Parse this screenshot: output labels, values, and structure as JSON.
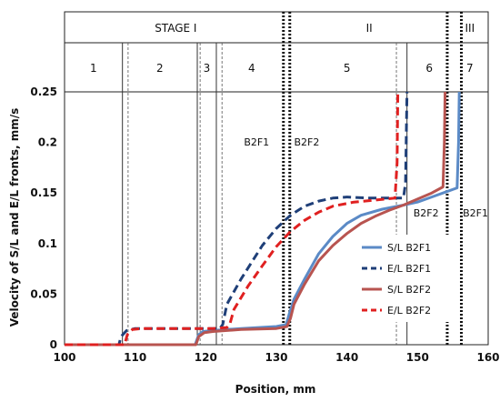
{
  "chart_data": {
    "type": "line",
    "xlabel": "Position, mm",
    "ylabel": "Velocity of S/L and E/L fronts, mm/s",
    "xlim": [
      100,
      160
    ],
    "ylim": [
      0,
      0.25
    ],
    "xticks": [
      "100",
      "110",
      "120",
      "130",
      "140",
      "150",
      "160"
    ],
    "yticks": [
      "0",
      "0.05",
      "0.1",
      "0.15",
      "0.2",
      "0.25"
    ],
    "stages": [
      {
        "label": "STAGE I",
        "x_from": 100,
        "x_to": 131.5
      },
      {
        "label": "II",
        "x_from": 131.5,
        "x_to": 154.8
      },
      {
        "label": "III",
        "x_from": 154.8,
        "x_to": 160
      }
    ],
    "zones": [
      {
        "label": "1",
        "x_from": 100,
        "x_to": 108.2
      },
      {
        "label": "2",
        "x_from": 108.2,
        "x_to": 118.8
      },
      {
        "label": "3",
        "x_from": 118.8,
        "x_to": 121.5
      },
      {
        "label": "4",
        "x_from": 121.5,
        "x_to": 131.5
      },
      {
        "label": "5",
        "x_from": 131.5,
        "x_to": 148.5
      },
      {
        "label": "6",
        "x_from": 148.5,
        "x_to": 154.8
      },
      {
        "label": "7",
        "x_from": 154.8,
        "x_to": 160
      }
    ],
    "solid_lines_x": [
      108.2,
      118.8,
      121.5,
      148.5
    ],
    "thin_dashed_lines_x": [
      109.0,
      119.2,
      122.3,
      147.0
    ],
    "dotted_lines_x": [
      131.0,
      131.9,
      154.2,
      156.2
    ],
    "annotations": [
      {
        "text": "B2F1",
        "x": 127.2,
        "y": 0.197
      },
      {
        "text": "B2F2",
        "x": 134.3,
        "y": 0.197
      },
      {
        "text": "B2F2",
        "x": 151.2,
        "y": 0.127
      },
      {
        "text": "B2F1",
        "x": 158.2,
        "y": 0.127
      }
    ],
    "series": [
      {
        "name": "S/L B2F1",
        "color": "#5b8ac6",
        "dash": "solid",
        "points": [
          [
            100,
            0
          ],
          [
            118.5,
            0
          ],
          [
            119,
            0.01
          ],
          [
            119.6,
            0.013
          ],
          [
            121,
            0.014
          ],
          [
            125,
            0.016
          ],
          [
            130,
            0.018
          ],
          [
            131.4,
            0.02
          ],
          [
            131.8,
            0.03
          ],
          [
            132.5,
            0.045
          ],
          [
            134,
            0.065
          ],
          [
            136,
            0.09
          ],
          [
            138,
            0.107
          ],
          [
            140,
            0.12
          ],
          [
            142,
            0.128
          ],
          [
            145,
            0.134
          ],
          [
            148,
            0.138
          ],
          [
            150,
            0.141
          ],
          [
            152,
            0.146
          ],
          [
            154,
            0.151
          ],
          [
            155.6,
            0.155
          ],
          [
            155.8,
            0.2
          ],
          [
            155.9,
            0.25
          ]
        ]
      },
      {
        "name": "E/L B2F1",
        "color": "#1f3f78",
        "dash": "dashed",
        "points": [
          [
            100,
            0
          ],
          [
            107.7,
            0
          ],
          [
            108,
            0.008
          ],
          [
            108.8,
            0.014
          ],
          [
            110,
            0.016
          ],
          [
            118,
            0.016
          ],
          [
            120,
            0.016
          ],
          [
            122,
            0.016
          ],
          [
            122.4,
            0.02
          ],
          [
            123,
            0.04
          ],
          [
            125,
            0.065
          ],
          [
            128,
            0.098
          ],
          [
            130,
            0.115
          ],
          [
            132,
            0.128
          ],
          [
            134,
            0.137
          ],
          [
            136,
            0.142
          ],
          [
            138,
            0.145
          ],
          [
            140,
            0.146
          ],
          [
            143,
            0.145
          ],
          [
            146,
            0.145
          ],
          [
            148,
            0.145
          ],
          [
            148.3,
            0.16
          ],
          [
            148.5,
            0.25
          ]
        ]
      },
      {
        "name": "S/L B2F2",
        "color": "#b85450",
        "dash": "solid",
        "points": [
          [
            100,
            0
          ],
          [
            118.6,
            0
          ],
          [
            119,
            0.008
          ],
          [
            119.8,
            0.012
          ],
          [
            121,
            0.013
          ],
          [
            125,
            0.015
          ],
          [
            130,
            0.016
          ],
          [
            131.5,
            0.018
          ],
          [
            132,
            0.026
          ],
          [
            132.5,
            0.04
          ],
          [
            134,
            0.06
          ],
          [
            136,
            0.083
          ],
          [
            138,
            0.098
          ],
          [
            140,
            0.11
          ],
          [
            142,
            0.12
          ],
          [
            144,
            0.127
          ],
          [
            146,
            0.133
          ],
          [
            148,
            0.138
          ],
          [
            150,
            0.144
          ],
          [
            152,
            0.15
          ],
          [
            153.6,
            0.156
          ],
          [
            153.8,
            0.2
          ],
          [
            153.9,
            0.25
          ]
        ]
      },
      {
        "name": "E/L B2F2",
        "color": "#e02020",
        "dash": "dashed",
        "points": [
          [
            100,
            0
          ],
          [
            108.5,
            0
          ],
          [
            108.9,
            0.01
          ],
          [
            109.6,
            0.015
          ],
          [
            111,
            0.016
          ],
          [
            118,
            0.016
          ],
          [
            121,
            0.016
          ],
          [
            123,
            0.017
          ],
          [
            123.4,
            0.02
          ],
          [
            124,
            0.035
          ],
          [
            126,
            0.058
          ],
          [
            128,
            0.078
          ],
          [
            130,
            0.097
          ],
          [
            132,
            0.112
          ],
          [
            134,
            0.123
          ],
          [
            136,
            0.131
          ],
          [
            138,
            0.137
          ],
          [
            141,
            0.141
          ],
          [
            144,
            0.143
          ],
          [
            146.8,
            0.145
          ],
          [
            147.1,
            0.18
          ],
          [
            147.2,
            0.25
          ]
        ]
      }
    ],
    "legend": {
      "placement": "right-center"
    }
  }
}
